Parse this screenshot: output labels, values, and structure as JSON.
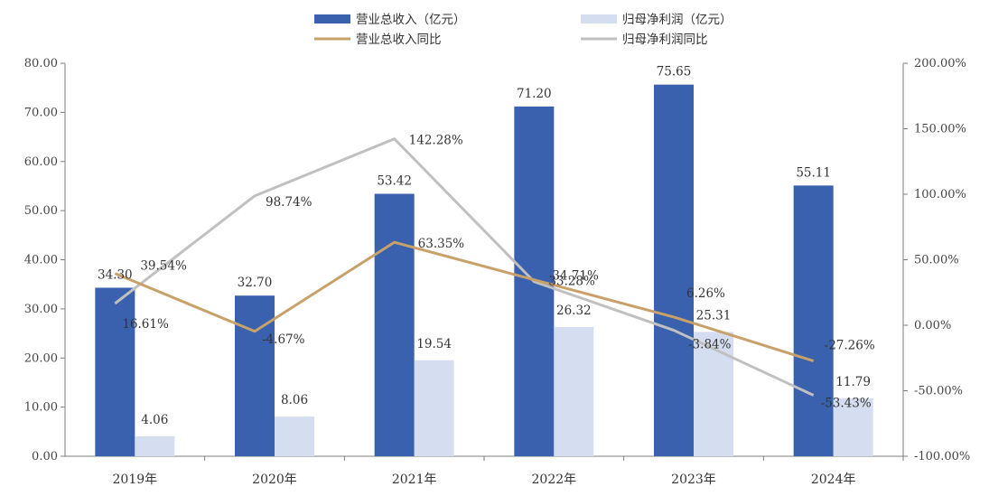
{
  "colors": {
    "revenue_bar": "#3a61ad",
    "profit_bar": "#d5def0",
    "revenue_yoy_line": "#c8a06a",
    "profit_yoy_line": "#c0c0c0",
    "axis": "#7f7f7f"
  },
  "chart_data": {
    "type": "bar",
    "categories": [
      "2019年",
      "2020年",
      "2021年",
      "2022年",
      "2023年",
      "2024年"
    ],
    "series": [
      {
        "name": "营业总收入（亿元）",
        "kind": "bar",
        "axis": "left",
        "values": [
          34.3,
          32.7,
          53.42,
          71.2,
          75.65,
          55.11
        ],
        "labels": [
          "34.30",
          "32.70",
          "53.42",
          "71.20",
          "75.65",
          "55.11"
        ]
      },
      {
        "name": "归母净利润（亿元）",
        "kind": "bar",
        "axis": "left",
        "values": [
          4.06,
          8.06,
          19.54,
          26.32,
          25.31,
          11.79
        ],
        "labels": [
          "4.06",
          "8.06",
          "19.54",
          "26.32",
          "25.31",
          "11.79"
        ]
      },
      {
        "name": "营业总收入同比",
        "kind": "line",
        "axis": "right",
        "values": [
          39.54,
          -4.67,
          63.35,
          34.71,
          6.26,
          -27.26
        ],
        "labels": [
          "39.54%",
          "-4.67%",
          "63.35%",
          "34.71%",
          "6.26%",
          "-27.26%"
        ]
      },
      {
        "name": "归母净利润同比",
        "kind": "line",
        "axis": "right",
        "values": [
          16.61,
          98.74,
          142.28,
          33.28,
          -3.84,
          -53.43
        ],
        "labels": [
          "16.61%",
          "98.74%",
          "142.28%",
          "33.28%",
          "-3.84%",
          "-53.43%"
        ]
      }
    ],
    "left_axis": {
      "ylim": [
        0,
        80
      ],
      "ticks": [
        "0.00",
        "10.00",
        "20.00",
        "30.00",
        "40.00",
        "50.00",
        "60.00",
        "70.00",
        "80.00"
      ]
    },
    "right_axis": {
      "ylim": [
        -100,
        200
      ],
      "unit": "%",
      "ticks": [
        "-100.00%",
        "-50.00%",
        "0.00%",
        "50.00%",
        "100.00%",
        "150.00%",
        "200.00%"
      ]
    },
    "legend": {
      "position": "top",
      "items": [
        "营业总收入（亿元）",
        "归母净利润（亿元）",
        "营业总收入同比",
        "归母净利润同比"
      ]
    },
    "grid": false
  }
}
